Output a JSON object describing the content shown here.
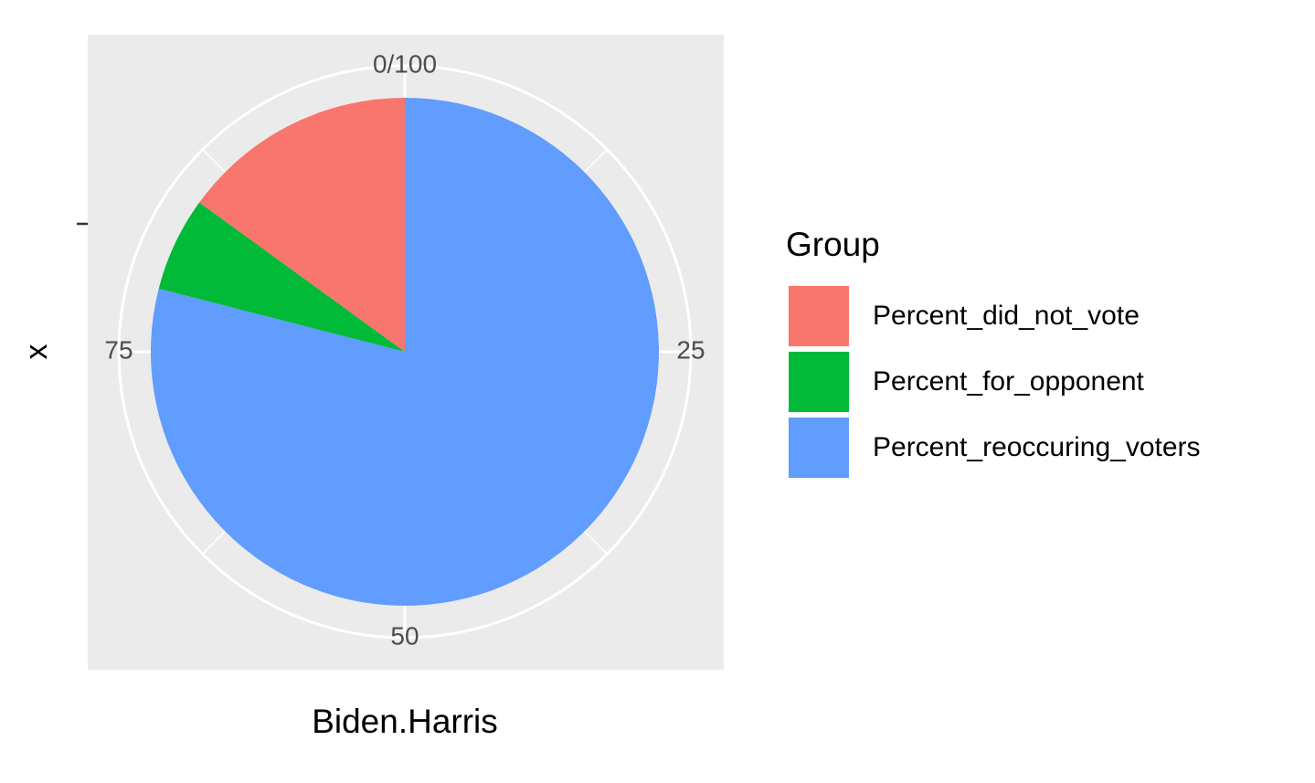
{
  "chart_data": {
    "type": "pie",
    "xlabel": "Biden.Harris",
    "ylabel": "x",
    "legend_title": "Group",
    "categories": [
      "Percent_did_not_vote",
      "Percent_for_opponent",
      "Percent_reoccuring_voters"
    ],
    "values": [
      15,
      6,
      79
    ],
    "colors": [
      "#F8766D",
      "#00BA38",
      "#619CFF"
    ],
    "thetalim": [
      0,
      100
    ],
    "thetaticks": [
      {
        "value": 0,
        "label": "0/100"
      },
      25,
      50,
      75
    ],
    "grid": true
  }
}
